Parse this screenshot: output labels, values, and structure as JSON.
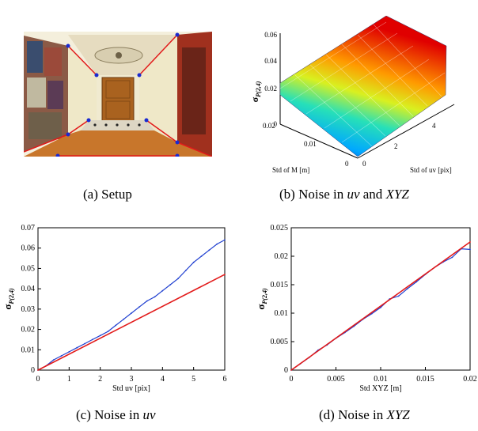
{
  "captions": {
    "a": {
      "label": "(a)",
      "text": "Setup"
    },
    "b": {
      "label": "(b)",
      "text_pre": "Noise in ",
      "em1": "uv",
      "mid": " and ",
      "em2": "XYZ"
    },
    "c": {
      "label": "(c)",
      "text_pre": "Noise in ",
      "em1": "uv"
    },
    "d": {
      "label": "(d)",
      "text_pre": "Noise in ",
      "em1": "XYZ"
    }
  },
  "colors": {
    "blue": "#1f3fd0",
    "red": "#e21a1a",
    "wall": "#efe8c8",
    "floor": "#c8762b",
    "door": "#a9621f"
  },
  "chart_data": [
    {
      "type": "surface",
      "panel": "b",
      "zlabel_main": "σ",
      "zlabel_sub": "P(2,4)",
      "xlabel": "Std of uv [pix]",
      "ylabel": "Std of M [m]",
      "xticks": [
        "0",
        "2",
        "4"
      ],
      "yticks": [
        "0",
        "0.01",
        "0.02"
      ],
      "zticks": [
        "0",
        "0.02",
        "0.04",
        "0.06"
      ],
      "xlim": [
        0,
        6
      ],
      "ylim": [
        0,
        0.02
      ],
      "zlim": [
        0,
        0.06
      ]
    },
    {
      "type": "line",
      "panel": "c",
      "ylabel_main": "σ",
      "ylabel_sub": "P(2,4)",
      "xlabel": "Std uv [pix]",
      "xlim": [
        0,
        6
      ],
      "ylim": [
        0,
        0.07
      ],
      "xticks": [
        "0",
        "1",
        "2",
        "3",
        "4",
        "5",
        "6"
      ],
      "yticks": [
        "0",
        "0.01",
        "0.02",
        "0.03",
        "0.04",
        "0.05",
        "0.06",
        "0.07"
      ],
      "series": [
        {
          "color": "blue",
          "x": [
            0,
            0.25,
            0.5,
            0.75,
            1,
            1.25,
            1.5,
            1.75,
            2,
            2.25,
            2.5,
            2.75,
            3,
            3.25,
            3.5,
            3.75,
            4,
            4.25,
            4.5,
            4.75,
            5,
            5.25,
            5.5,
            5.75,
            6
          ],
          "y": [
            0,
            0.002,
            0.005,
            0.007,
            0.009,
            0.011,
            0.013,
            0.015,
            0.017,
            0.019,
            0.022,
            0.025,
            0.028,
            0.031,
            0.034,
            0.036,
            0.039,
            0.042,
            0.045,
            0.049,
            0.053,
            0.056,
            0.059,
            0.062,
            0.064
          ]
        },
        {
          "color": "red",
          "x": [
            0,
            6
          ],
          "y": [
            0,
            0.047
          ]
        }
      ]
    },
    {
      "type": "line",
      "panel": "d",
      "ylabel_main": "σ",
      "ylabel_sub": "P(2,4)",
      "xlabel": "Std XYZ [m]",
      "xlim": [
        0,
        0.02
      ],
      "ylim": [
        0,
        0.025
      ],
      "xticks": [
        "0",
        "0.005",
        "0.01",
        "0.015",
        "0.02"
      ],
      "yticks": [
        "0",
        "0.005",
        "0.01",
        "0.015",
        "0.02",
        "0.025"
      ],
      "series": [
        {
          "color": "blue",
          "x": [
            0,
            0.001,
            0.002,
            0.003,
            0.004,
            0.005,
            0.006,
            0.007,
            0.008,
            0.009,
            0.01,
            0.011,
            0.012,
            0.013,
            0.014,
            0.015,
            0.016,
            0.017,
            0.018,
            0.019,
            0.02
          ],
          "y": [
            0,
            0.0011,
            0.0022,
            0.0035,
            0.0044,
            0.0056,
            0.0066,
            0.0077,
            0.0089,
            0.0099,
            0.011,
            0.0125,
            0.013,
            0.0143,
            0.0155,
            0.0168,
            0.018,
            0.019,
            0.0198,
            0.0213,
            0.0212
          ]
        },
        {
          "color": "red",
          "x": [
            0,
            0.02
          ],
          "y": [
            0,
            0.0225
          ]
        }
      ]
    }
  ]
}
